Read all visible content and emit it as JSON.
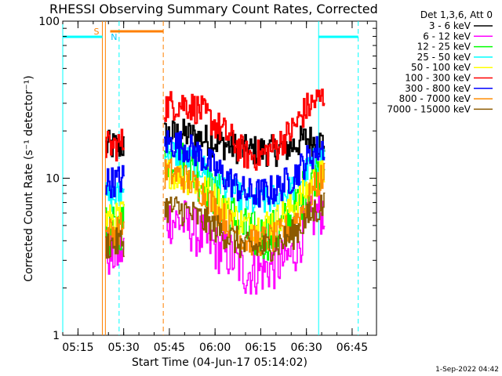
{
  "chart_data": {
    "type": "line",
    "title": "RHESSI Observing Summary Count Rates, Corrected",
    "xlabel": "Start Time (04-Jun-17 05:14:02)",
    "ylabel": "Corrected Count Rate (s⁻¹ detector⁻¹)",
    "yscale": "log",
    "ylim": [
      1,
      100
    ],
    "xlim": [
      "05:10",
      "06:53"
    ],
    "x_ticks": [
      "05:15",
      "05:30",
      "05:45",
      "06:00",
      "06:15",
      "06:30",
      "06:45"
    ],
    "y_ticks": [
      "1",
      "10",
      "100"
    ],
    "legend_header": "Det 1,3,6, Att 0",
    "legend_position": "top-right",
    "footer": "1-Sep-2022 04:42",
    "data_gaps": [
      [
        "05:30",
        "05:43"
      ],
      [
        "06:37",
        "06:53"
      ]
    ],
    "series": [
      {
        "name": "3 - 6 keV",
        "color": "#000000",
        "x": [
          "05:24",
          "05:27",
          "05:30",
          "05:44",
          "05:50",
          "05:55",
          "06:00",
          "06:05",
          "06:10",
          "06:15",
          "06:20",
          "06:25",
          "06:30",
          "06:33",
          "06:36"
        ],
        "values": [
          16,
          16,
          16,
          19,
          19,
          18,
          17,
          16,
          15,
          15,
          15,
          16,
          18,
          17,
          17
        ]
      },
      {
        "name": "6 - 12 keV",
        "color": "#ff00ff",
        "x": [
          "05:24",
          "05:27",
          "05:30",
          "05:44",
          "05:50",
          "05:55",
          "06:00",
          "06:05",
          "06:10",
          "06:15",
          "06:20",
          "06:25",
          "06:30",
          "06:33",
          "06:36"
        ],
        "values": [
          3.3,
          3.3,
          3.5,
          5.5,
          5.2,
          4.3,
          3.6,
          3.2,
          2.5,
          2.6,
          2.8,
          3.2,
          5.0,
          6.0,
          6.4
        ]
      },
      {
        "name": "12 - 25 keV",
        "color": "#00ff00",
        "x": [
          "05:24",
          "05:27",
          "05:30",
          "05:44",
          "05:50",
          "05:55",
          "06:00",
          "06:05",
          "06:10",
          "06:15",
          "06:20",
          "06:25",
          "06:30",
          "06:33",
          "06:36"
        ],
        "values": [
          4.5,
          4.6,
          5.2,
          14,
          12,
          10,
          8.0,
          6.0,
          4.5,
          4.2,
          4.5,
          5.5,
          9.0,
          11.5,
          13
        ]
      },
      {
        "name": "25 - 50 keV",
        "color": "#00ffff",
        "x": [
          "05:24",
          "05:27",
          "05:30",
          "05:44",
          "05:50",
          "05:55",
          "06:00",
          "06:05",
          "06:10",
          "06:15",
          "06:20",
          "06:25",
          "06:30",
          "06:33",
          "06:36"
        ],
        "values": [
          7.5,
          7.5,
          8.3,
          15,
          13.5,
          12,
          10,
          8.5,
          7.0,
          7.0,
          7.5,
          8.5,
          11,
          13,
          14
        ]
      },
      {
        "name": "50 - 100 keV",
        "color": "#ffff00",
        "x": [
          "05:24",
          "05:27",
          "05:30",
          "05:44",
          "05:50",
          "05:55",
          "06:00",
          "06:05",
          "06:10",
          "06:15",
          "06:20",
          "06:25",
          "06:30",
          "06:33",
          "06:36"
        ],
        "values": [
          5.5,
          5.5,
          6.0,
          11,
          10,
          9.0,
          7.5,
          6.0,
          5.0,
          5.0,
          5.5,
          6.5,
          8.5,
          10,
          11
        ]
      },
      {
        "name": "100 - 300 keV",
        "color": "#ff0000",
        "x": [
          "05:24",
          "05:27",
          "05:30",
          "05:44",
          "05:50",
          "05:55",
          "06:00",
          "06:05",
          "06:10",
          "06:15",
          "06:20",
          "06:25",
          "06:30",
          "06:33",
          "06:36"
        ],
        "values": [
          16,
          16,
          17,
          29,
          30,
          27,
          22,
          18,
          14,
          14,
          16,
          20,
          28,
          31,
          33
        ]
      },
      {
        "name": "300 - 800 keV",
        "color": "#0000ff",
        "x": [
          "05:24",
          "05:27",
          "05:30",
          "05:44",
          "05:50",
          "05:55",
          "06:00",
          "06:05",
          "06:10",
          "06:15",
          "06:20",
          "06:25",
          "06:30",
          "06:33",
          "06:36"
        ],
        "values": [
          9.5,
          9.5,
          10,
          17,
          16,
          14,
          11.5,
          9.5,
          8.0,
          8.0,
          8.5,
          10,
          13,
          15,
          16
        ]
      },
      {
        "name": "800 - 7000 keV",
        "color": "#ff8c00",
        "x": [
          "05:24",
          "05:27",
          "05:30",
          "05:44",
          "05:50",
          "05:55",
          "06:00",
          "06:05",
          "06:10",
          "06:15",
          "06:20",
          "06:25",
          "06:30",
          "06:33",
          "06:36"
        ],
        "values": [
          4.5,
          4.6,
          5.0,
          11,
          10,
          8.5,
          6.5,
          5.0,
          4.0,
          4.0,
          4.2,
          5.0,
          7.0,
          9.0,
          10.5
        ]
      },
      {
        "name": "7000 - 15000 keV",
        "color": "#8b5a00",
        "x": [
          "05:24",
          "05:27",
          "05:30",
          "05:44",
          "05:50",
          "05:55",
          "06:00",
          "06:05",
          "06:10",
          "06:15",
          "06:20",
          "06:25",
          "06:30",
          "06:33",
          "06:36"
        ],
        "values": [
          3.8,
          3.8,
          4.0,
          6.5,
          6.2,
          5.5,
          4.8,
          4.2,
          3.6,
          3.6,
          3.8,
          4.3,
          5.5,
          6.3,
          6.8
        ]
      }
    ],
    "flags": [
      {
        "label": "S",
        "color": "#ff8000",
        "start": "05:23",
        "end": "05:43"
      },
      {
        "label": "N",
        "color": "#00c8ff",
        "start": "05:10",
        "end": "05:25"
      }
    ],
    "eclipse_bars": [
      {
        "color": "#00ffff",
        "start": "05:10",
        "end": "05:23"
      },
      {
        "color": "#00ffff",
        "start": "06:34",
        "end": "06:47"
      }
    ],
    "vertical_lines": [
      {
        "time": "05:23",
        "color": "#ff8000",
        "style": "solid"
      },
      {
        "time": "05:24",
        "color": "#ff8000",
        "style": "solid"
      },
      {
        "time": "05:28.5",
        "color": "#00ffff",
        "style": "dashed"
      },
      {
        "time": "05:43",
        "color": "#ff8000",
        "style": "dashed"
      },
      {
        "time": "05:10",
        "color": "#00ffff",
        "style": "solid"
      },
      {
        "time": "06:34",
        "color": "#00ffff",
        "style": "solid"
      },
      {
        "time": "06:47",
        "color": "#00ffff",
        "style": "dashed"
      }
    ],
    "grid": false
  }
}
